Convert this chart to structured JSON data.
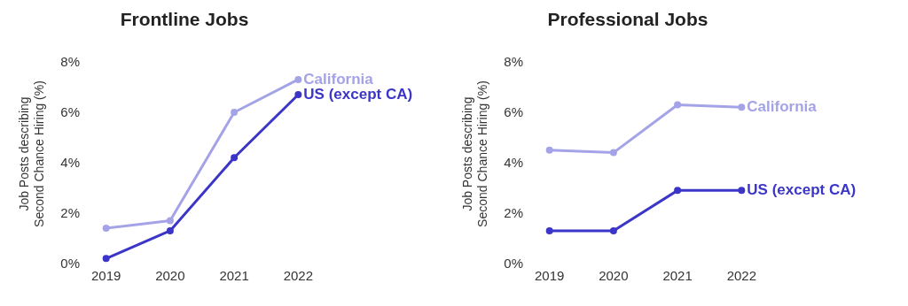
{
  "chart_data": [
    {
      "type": "line",
      "title": "Frontline Jobs",
      "ylabel": "Job Posts describing Second Chance Hiring (%)",
      "categories": [
        "2019",
        "2020",
        "2021",
        "2022"
      ],
      "series": [
        {
          "name": "California",
          "color": "#a5a3e8",
          "values": [
            1.4,
            1.7,
            6.0,
            7.3
          ]
        },
        {
          "name": "US (except CA)",
          "color": "#3b35c8",
          "values": [
            0.2,
            1.3,
            4.2,
            6.7
          ]
        }
      ],
      "ylim": [
        0,
        8
      ],
      "yticks": [
        {
          "value": 0,
          "label": "0%"
        },
        {
          "value": 2,
          "label": "2%"
        },
        {
          "value": 4,
          "label": "4%"
        },
        {
          "value": 6,
          "label": "6%"
        },
        {
          "value": 8,
          "label": "8%"
        }
      ],
      "grid": false,
      "legend": false,
      "marker": "circle",
      "line_style": "solid"
    },
    {
      "type": "line",
      "title": "Professional Jobs",
      "ylabel": "Job Posts describing Second Chance Hiring (%)",
      "categories": [
        "2019",
        "2020",
        "2021",
        "2022"
      ],
      "series": [
        {
          "name": "California",
          "color": "#a5a3e8",
          "values": [
            4.5,
            4.4,
            6.3,
            6.2
          ]
        },
        {
          "name": "US (except CA)",
          "color": "#3b35c8",
          "values": [
            1.3,
            1.3,
            2.9,
            2.9
          ]
        }
      ],
      "ylim": [
        0,
        8
      ],
      "yticks": [
        {
          "value": 0,
          "label": "0%"
        },
        {
          "value": 2,
          "label": "2%"
        },
        {
          "value": 4,
          "label": "4%"
        },
        {
          "value": 6,
          "label": "6%"
        },
        {
          "value": 8,
          "label": "8%"
        }
      ],
      "grid": false,
      "legend": false,
      "marker": "circle",
      "line_style": "solid"
    }
  ]
}
